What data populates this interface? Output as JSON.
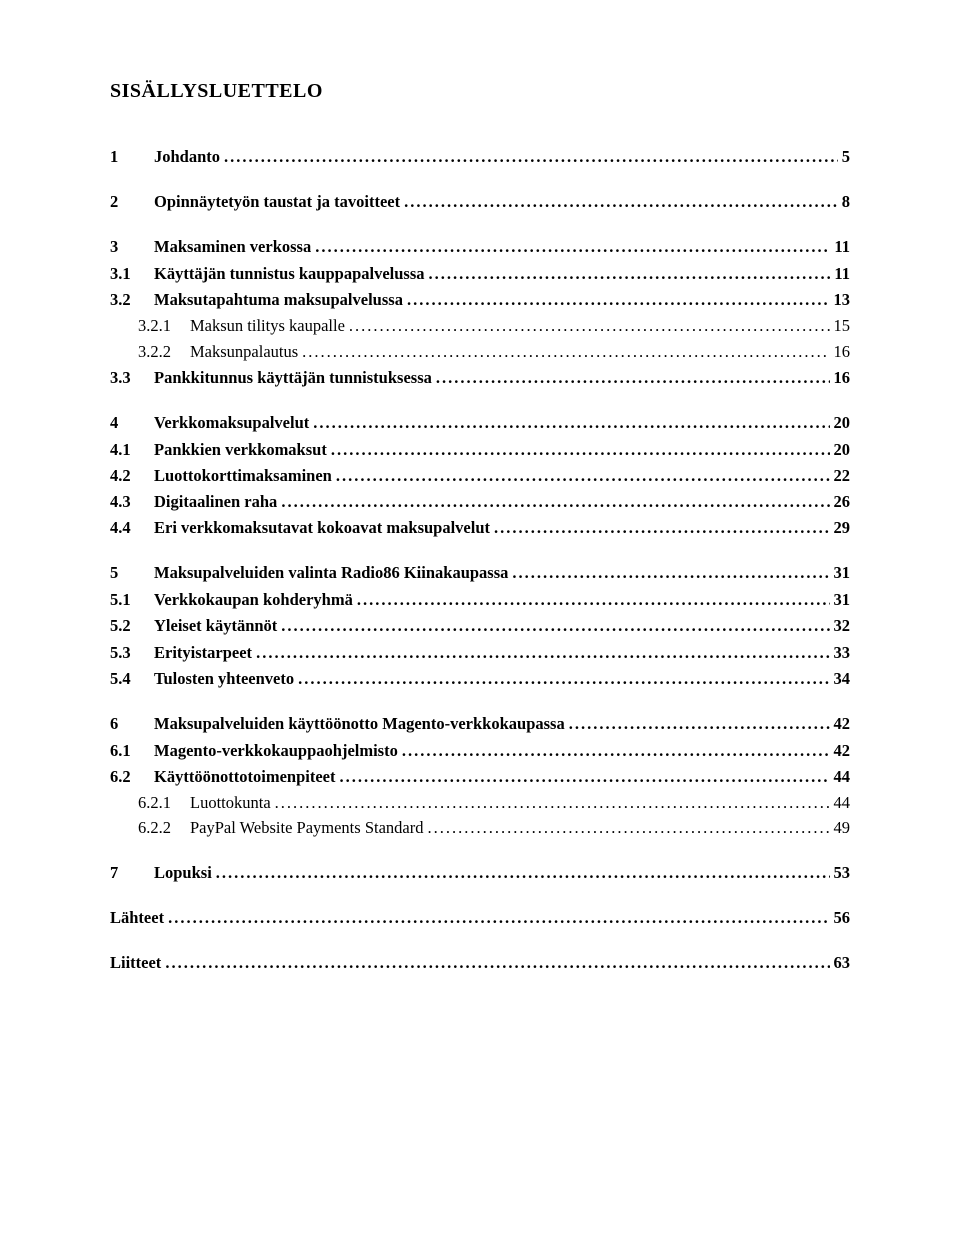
{
  "title": "SISÄLLYSLUETTELO",
  "entries": [
    {
      "level": 1,
      "num": "1",
      "label": "Johdanto",
      "page": "5"
    },
    {
      "level": 1,
      "num": "2",
      "label": "Opinnäytetyön taustat ja tavoitteet",
      "page": "8"
    },
    {
      "level": 1,
      "num": "3",
      "label": "Maksaminen verkossa",
      "page": "11"
    },
    {
      "level": 2,
      "num": "3.1",
      "label": "Käyttäjän tunnistus kauppapalvelussa",
      "page": "11"
    },
    {
      "level": 2,
      "num": "3.2",
      "label": "Maksutapahtuma maksupalvelussa",
      "page": "13"
    },
    {
      "level": 3,
      "num": "3.2.1",
      "label": "Maksun tilitys kaupalle",
      "page": "15"
    },
    {
      "level": 3,
      "num": "3.2.2",
      "label": "Maksunpalautus",
      "page": "16"
    },
    {
      "level": 2,
      "num": "3.3",
      "label": "Pankkitunnus käyttäjän tunnistuksessa",
      "page": "16"
    },
    {
      "level": 1,
      "num": "4",
      "label": "Verkkomaksupalvelut",
      "page": "20"
    },
    {
      "level": 2,
      "num": "4.1",
      "label": "Pankkien verkkomaksut",
      "page": "20"
    },
    {
      "level": 2,
      "num": "4.2",
      "label": "Luottokorttimaksaminen",
      "page": "22"
    },
    {
      "level": 2,
      "num": "4.3",
      "label": "Digitaalinen raha",
      "page": "26"
    },
    {
      "level": 2,
      "num": "4.4",
      "label": "Eri verkkomaksutavat kokoavat maksupalvelut",
      "page": "29"
    },
    {
      "level": 1,
      "num": "5",
      "label": "Maksupalveluiden valinta Radio86 Kiinakaupassa",
      "page": "31"
    },
    {
      "level": 2,
      "num": "5.1",
      "label": "Verkkokaupan kohderyhmä",
      "page": "31"
    },
    {
      "level": 2,
      "num": "5.2",
      "label": "Yleiset käytännöt",
      "page": "32"
    },
    {
      "level": 2,
      "num": "5.3",
      "label": "Erityistarpeet",
      "page": "33"
    },
    {
      "level": 2,
      "num": "5.4",
      "label": "Tulosten yhteenveto",
      "page": "34"
    },
    {
      "level": 1,
      "num": "6",
      "label": "Maksupalveluiden käyttöönotto Magento-verkkokaupassa",
      "page": "42"
    },
    {
      "level": 2,
      "num": "6.1",
      "label": "Magento-verkkokauppaohjelmisto",
      "page": "42"
    },
    {
      "level": 2,
      "num": "6.2",
      "label": "Käyttöönottotoimenpiteet",
      "page": "44"
    },
    {
      "level": 3,
      "num": "6.2.1",
      "label": "Luottokunta",
      "page": "44"
    },
    {
      "level": 3,
      "num": "6.2.2",
      "label": "PayPal Website Payments Standard",
      "page": "49"
    },
    {
      "level": 1,
      "num": "7",
      "label": "Lopuksi",
      "page": "53"
    },
    {
      "level": 1,
      "num": "",
      "label": "Lähteet",
      "page": "56",
      "nonum": true
    },
    {
      "level": 1,
      "num": "",
      "label": "Liitteet",
      "page": "63",
      "nonum": true
    }
  ]
}
